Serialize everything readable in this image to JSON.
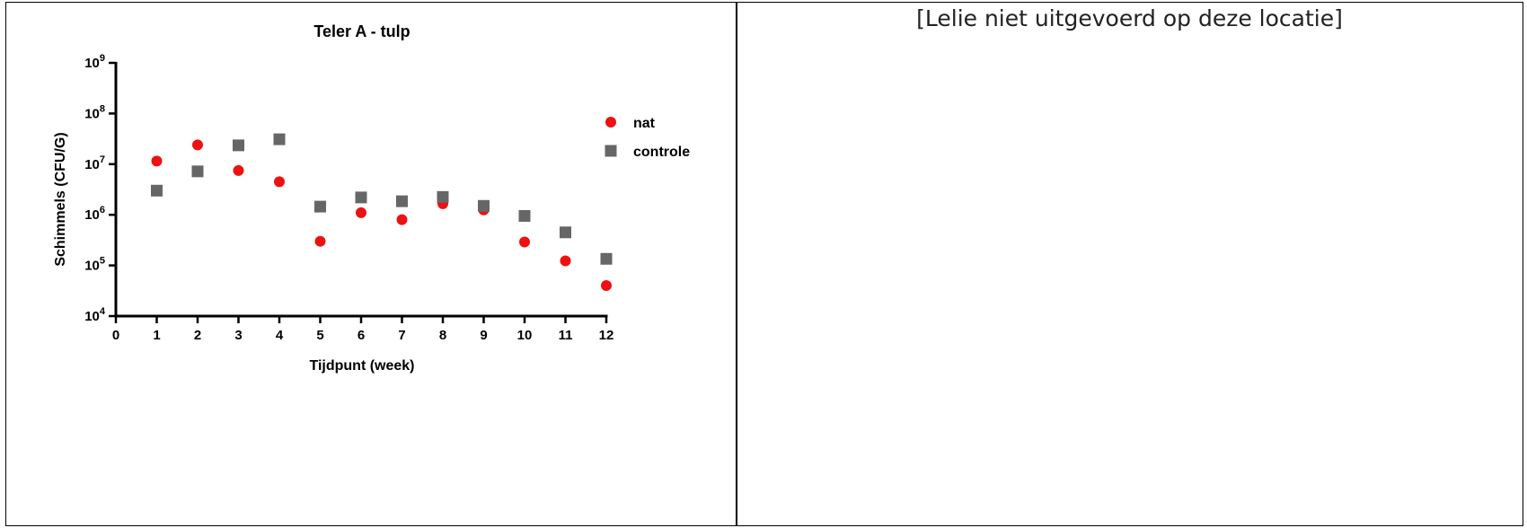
{
  "left_panel": {
    "chart_data": {
      "type": "scatter",
      "title": "Teler A - tulp",
      "xlabel": "Tijdpunt (week)",
      "ylabel": "Schimmels (CFU/G)",
      "xlim": [
        0,
        12
      ],
      "ylim": [
        10000,
        1000000000
      ],
      "yscale": "log",
      "x_ticks": [
        "0",
        "1",
        "2",
        "3",
        "4",
        "5",
        "6",
        "7",
        "8",
        "9",
        "10",
        "11",
        "12"
      ],
      "y_ticks": [
        {
          "base": "10",
          "exp": "4",
          "value": 10000
        },
        {
          "base": "10",
          "exp": "5",
          "value": 100000
        },
        {
          "base": "10",
          "exp": "6",
          "value": 1000000
        },
        {
          "base": "10",
          "exp": "7",
          "value": 10000000
        },
        {
          "base": "10",
          "exp": "8",
          "value": 100000000
        },
        {
          "base": "10",
          "exp": "9",
          "value": 1000000000
        }
      ],
      "grid": false,
      "legend_position": "top-right",
      "series": [
        {
          "name": "nat",
          "marker": "circle",
          "color": "#ee1111",
          "x": [
            1,
            2,
            3,
            4,
            5,
            6,
            7,
            8,
            9,
            10,
            11,
            12
          ],
          "y": [
            11500000,
            24000000,
            7500000,
            4500000,
            300000,
            1100000,
            800000,
            1650000,
            1250000,
            290000,
            123000,
            40000
          ]
        },
        {
          "name": "controle",
          "marker": "square",
          "color": "#666666",
          "x": [
            1,
            2,
            3,
            4,
            5,
            6,
            7,
            8,
            9,
            10,
            11,
            12
          ],
          "y": [
            3000000,
            7200000,
            23500000,
            31000000,
            1450000,
            2200000,
            1850000,
            2250000,
            1500000,
            950000,
            450000,
            135000
          ]
        }
      ]
    }
  },
  "right_panel": {
    "note": "[Lelie niet uitgevoerd op deze locatie]"
  }
}
